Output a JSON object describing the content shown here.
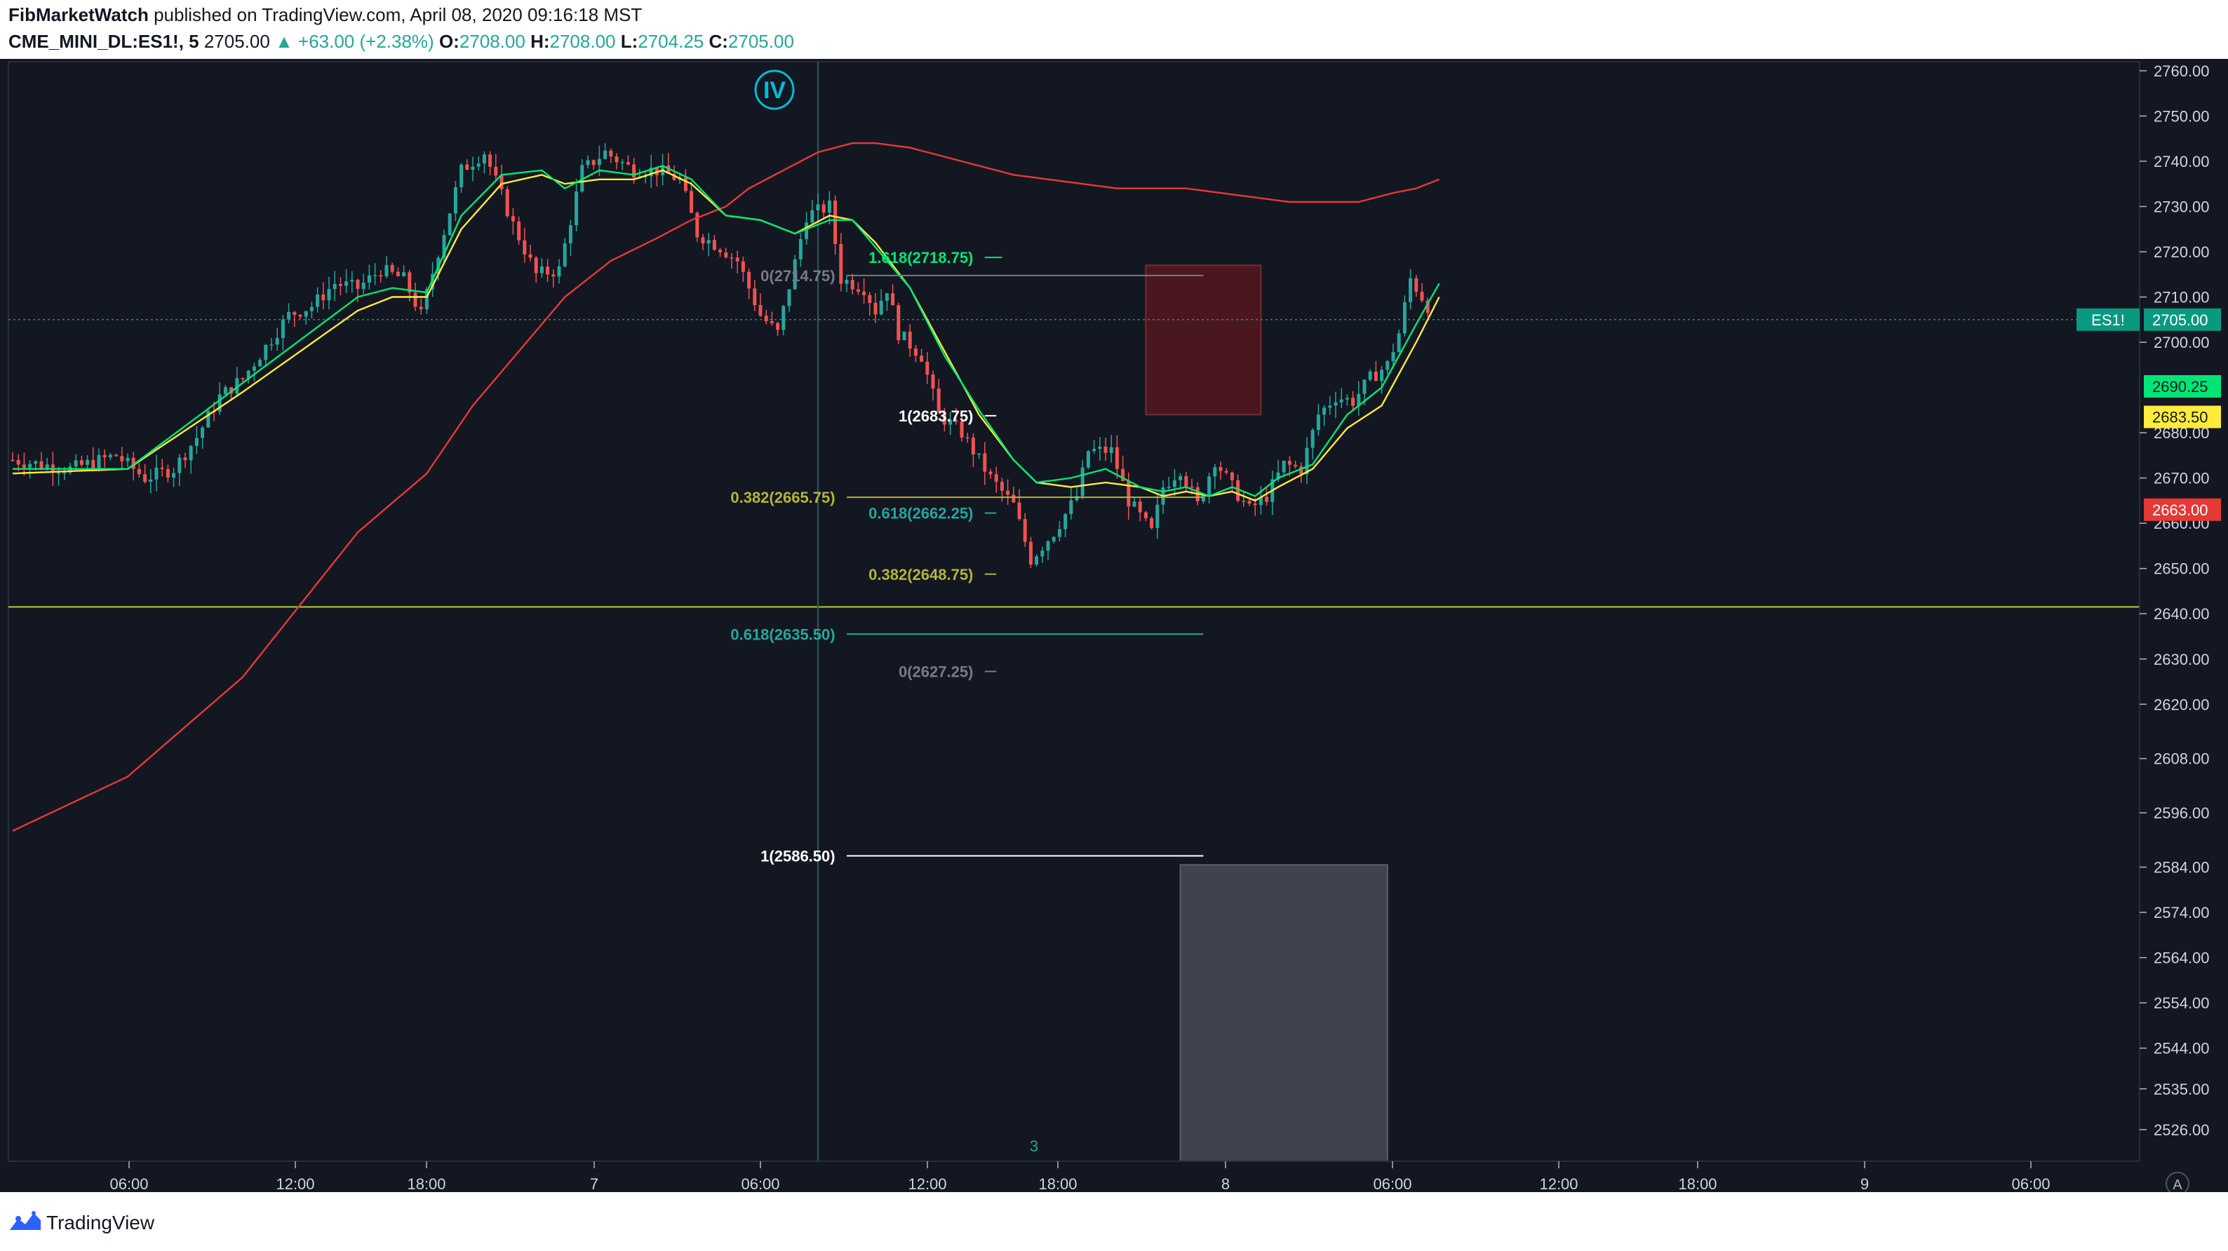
{
  "header": {
    "publisher": "FibMarketWatch",
    "published_text": "published on TradingView.com, April 08, 2020 09:16:18 MST",
    "symbol": "CME_MINI_DL:ES1!, 5",
    "last": "2705.00",
    "change": "▲ +63.00 (+2.38%)",
    "o_label": "O:",
    "o": "2708.00",
    "h_label": "H:",
    "h": "2708.00",
    "l_label": "L:",
    "l": "2704.25",
    "c_label": "C:",
    "c": "2705.00"
  },
  "footer": {
    "brand": "TradingView"
  },
  "colors": {
    "bg": "#131722",
    "up": "#26a69a",
    "down": "#ef5350",
    "ema_fast": "#00e676",
    "ema_mid": "#ffeb3b",
    "ema_slow": "#e53935",
    "h_line": "#b2d235",
    "teal": "#26a69a",
    "fib_up": "#00e676"
  },
  "chart_data": {
    "type": "candlestick",
    "y_range": [
      2519,
      2762
    ],
    "y_ticks": [
      "2760.00",
      "2750.00",
      "2740.00",
      "2730.00",
      "2720.00",
      "2710.00",
      "2700.00",
      "2680.00",
      "2670.00",
      "2660.00",
      "2650.00",
      "2640.00",
      "2630.00",
      "2620.00",
      "2608.00",
      "2596.00",
      "2584.00",
      "2574.00",
      "2564.00",
      "2554.00",
      "2544.00",
      "2535.00",
      "2526.00"
    ],
    "x_ticks": [
      "06:00",
      "12:00",
      "18:00",
      "7",
      "06:00",
      "12:00",
      "18:00",
      "8",
      "06:00",
      "12:00",
      "18:00",
      "9",
      "06:00"
    ],
    "price_path": [
      [
        0,
        2674
      ],
      [
        10,
        2672
      ],
      [
        18,
        2675
      ],
      [
        23,
        2670
      ],
      [
        28,
        2672
      ],
      [
        32,
        2679
      ],
      [
        36,
        2688
      ],
      [
        40,
        2692
      ],
      [
        44,
        2699
      ],
      [
        48,
        2706
      ],
      [
        52,
        2708
      ],
      [
        56,
        2713
      ],
      [
        60,
        2712
      ],
      [
        64,
        2716
      ],
      [
        68,
        2714
      ],
      [
        71,
        2706
      ],
      [
        74,
        2720
      ],
      [
        78,
        2738
      ],
      [
        82,
        2742
      ],
      [
        87,
        2726
      ],
      [
        91,
        2715
      ],
      [
        95,
        2716
      ],
      [
        99,
        2738
      ],
      [
        103,
        2742
      ],
      [
        108,
        2738
      ],
      [
        112,
        2738
      ],
      [
        116,
        2736
      ],
      [
        119,
        2724
      ],
      [
        123,
        2721
      ],
      [
        126,
        2718
      ],
      [
        130,
        2706
      ],
      [
        133,
        2702
      ],
      [
        138,
        2728
      ],
      [
        142,
        2730
      ],
      [
        144,
        2714
      ],
      [
        148,
        2712
      ],
      [
        150,
        2707
      ],
      [
        152,
        2712
      ],
      [
        154,
        2702
      ],
      [
        158,
        2697
      ],
      [
        161,
        2684
      ],
      [
        165,
        2680
      ],
      [
        170,
        2670
      ],
      [
        174,
        2664
      ],
      [
        177,
        2652
      ],
      [
        181,
        2658
      ],
      [
        185,
        2666
      ],
      [
        187,
        2676
      ],
      [
        191,
        2676
      ],
      [
        194,
        2665
      ],
      [
        198,
        2658
      ],
      [
        200,
        2668
      ],
      [
        203,
        2672
      ],
      [
        206,
        2664
      ],
      [
        209,
        2674
      ],
      [
        212,
        2668
      ],
      [
        215,
        2663
      ],
      [
        218,
        2666
      ],
      [
        221,
        2673
      ],
      [
        224,
        2672
      ],
      [
        227,
        2684
      ],
      [
        230,
        2688
      ],
      [
        233,
        2687
      ],
      [
        236,
        2692
      ],
      [
        239,
        2695
      ],
      [
        241,
        2702
      ],
      [
        243,
        2714
      ],
      [
        246,
        2708
      ]
    ],
    "ema_fast": [
      [
        0,
        2672
      ],
      [
        20,
        2672
      ],
      [
        40,
        2691
      ],
      [
        60,
        2710
      ],
      [
        66,
        2712
      ],
      [
        72,
        2711
      ],
      [
        78,
        2728
      ],
      [
        85,
        2737
      ],
      [
        92,
        2738
      ],
      [
        96,
        2734
      ],
      [
        102,
        2738
      ],
      [
        108,
        2737
      ],
      [
        113,
        2739
      ],
      [
        118,
        2736
      ],
      [
        124,
        2728
      ],
      [
        130,
        2727
      ],
      [
        136,
        2724
      ],
      [
        142,
        2727
      ],
      [
        146,
        2727
      ],
      [
        150,
        2721
      ],
      [
        156,
        2712
      ],
      [
        162,
        2697
      ],
      [
        168,
        2685
      ],
      [
        174,
        2674
      ],
      [
        178,
        2669
      ],
      [
        184,
        2670
      ],
      [
        190,
        2672
      ],
      [
        196,
        2668
      ],
      [
        200,
        2667
      ],
      [
        204,
        2668
      ],
      [
        208,
        2666
      ],
      [
        212,
        2668
      ],
      [
        216,
        2666
      ],
      [
        220,
        2670
      ],
      [
        226,
        2673
      ],
      [
        232,
        2684
      ],
      [
        238,
        2690
      ],
      [
        244,
        2704
      ],
      [
        248,
        2713
      ]
    ],
    "ema_mid": [
      [
        0,
        2671
      ],
      [
        20,
        2672
      ],
      [
        40,
        2689
      ],
      [
        60,
        2707
      ],
      [
        66,
        2710
      ],
      [
        72,
        2710
      ],
      [
        78,
        2725
      ],
      [
        85,
        2735
      ],
      [
        92,
        2737
      ],
      [
        96,
        2735
      ],
      [
        102,
        2736
      ],
      [
        108,
        2736
      ],
      [
        113,
        2738
      ],
      [
        118,
        2735
      ],
      [
        124,
        2728
      ],
      [
        130,
        2727
      ],
      [
        136,
        2724
      ],
      [
        142,
        2728
      ],
      [
        146,
        2727
      ],
      [
        150,
        2722
      ],
      [
        156,
        2712
      ],
      [
        162,
        2698
      ],
      [
        168,
        2684
      ],
      [
        174,
        2674
      ],
      [
        178,
        2669
      ],
      [
        184,
        2668
      ],
      [
        190,
        2669
      ],
      [
        196,
        2668
      ],
      [
        200,
        2666
      ],
      [
        204,
        2667
      ],
      [
        208,
        2666
      ],
      [
        212,
        2667
      ],
      [
        216,
        2665
      ],
      [
        220,
        2668
      ],
      [
        226,
        2672
      ],
      [
        232,
        2681
      ],
      [
        238,
        2686
      ],
      [
        244,
        2700
      ],
      [
        248,
        2710
      ]
    ],
    "ema_slow": [
      [
        0,
        2592
      ],
      [
        20,
        2604
      ],
      [
        40,
        2626
      ],
      [
        60,
        2658
      ],
      [
        72,
        2671
      ],
      [
        80,
        2686
      ],
      [
        88,
        2698
      ],
      [
        96,
        2710
      ],
      [
        104,
        2718
      ],
      [
        112,
        2723
      ],
      [
        118,
        2727
      ],
      [
        124,
        2730
      ],
      [
        128,
        2734
      ],
      [
        134,
        2738
      ],
      [
        140,
        2742
      ],
      [
        146,
        2744
      ],
      [
        150,
        2744
      ],
      [
        156,
        2743
      ],
      [
        162,
        2741
      ],
      [
        168,
        2739
      ],
      [
        174,
        2737
      ],
      [
        180,
        2736
      ],
      [
        186,
        2735
      ],
      [
        192,
        2734
      ],
      [
        198,
        2734
      ],
      [
        204,
        2734
      ],
      [
        210,
        2733
      ],
      [
        216,
        2732
      ],
      [
        222,
        2731
      ],
      [
        228,
        2731
      ],
      [
        234,
        2731
      ],
      [
        240,
        2733
      ],
      [
        244,
        2734
      ],
      [
        248,
        2736
      ]
    ],
    "h_level": 2641.5,
    "fib_retrace_1": {
      "top": "0(2714.75)",
      "mid": "0.382(2665.75)",
      "low": "0.618(2635.50)",
      "top_price": 2714.75,
      "mid_price": 2665.75,
      "low_price": 2635.5
    },
    "fib_retrace_2": {
      "top": "1(2683.75)",
      "mid_a": "0.618(2662.25)",
      "mid_b": "0.382(2648.75)",
      "low": "0(2627.25)",
      "top_price": 2683.75,
      "mid_a_price": 2662.25,
      "mid_b_price": 2648.75,
      "low_price": 2627.25
    },
    "fib_ext_1618": {
      "label": "1.618(2718.75)",
      "price": 2718.75
    },
    "fib_ext_1": {
      "label": "1(2586.50)",
      "price": 2586.5
    },
    "red_box": {
      "from_price": 2684.0,
      "to_price": 2717.0
    },
    "gray_box": {
      "from_price": 2519.0,
      "to_price": 2584.5
    },
    "wave_label": "IV",
    "cursor_label": "3",
    "price_tags": [
      {
        "symbol": "ES1!",
        "label": "2705.00",
        "price": 2705.0,
        "color": "#089981"
      },
      {
        "label": "2690.25",
        "price": 2690.25,
        "color": "#00e676"
      },
      {
        "label": "2683.50",
        "price": 2683.5,
        "color": "#ffeb3b"
      },
      {
        "label": "2663.00",
        "price": 2663.0,
        "color": "#e53935"
      }
    ],
    "corner_label": "A"
  }
}
